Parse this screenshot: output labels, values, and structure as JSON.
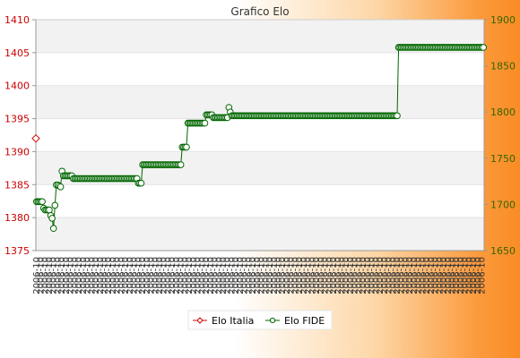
{
  "chart_data": {
    "type": "line",
    "title": "Grafico Elo",
    "left_axis": {
      "ticks": [
        1375,
        1380,
        1385,
        1390,
        1395,
        1400,
        1405,
        1410
      ],
      "ylim": [
        1375,
        1410
      ],
      "color": "#cc0000"
    },
    "right_axis": {
      "ticks": [
        1650,
        1700,
        1750,
        1800,
        1850,
        1900
      ],
      "ylim": [
        1650,
        1900
      ],
      "color": "#336600"
    },
    "grid": true,
    "legend_position": "bottom",
    "legend": [
      "Elo Italia",
      "Elo FIDE"
    ],
    "x_tick_label_sample": "2006-10",
    "series": [
      {
        "name": "Elo Italia",
        "axis": "left",
        "color": "#cc0000",
        "marker": "diamond",
        "values": [
          1392
        ]
      },
      {
        "name": "Elo FIDE",
        "axis": "right",
        "color": "#006600",
        "marker": "circle",
        "values": [
          1703,
          1703,
          1703,
          1703,
          1703,
          1696,
          1694,
          1694,
          1694,
          1694,
          1688,
          1685,
          1674,
          1699,
          1721,
          1721,
          1720,
          1719,
          1736,
          1731,
          1731,
          1731,
          1731,
          1731,
          1731,
          1731,
          1728,
          1728,
          1728,
          1728,
          1728,
          1728,
          1728,
          1728,
          1728,
          1728,
          1728,
          1728,
          1728,
          1728,
          1728,
          1728,
          1728,
          1728,
          1728,
          1728,
          1728,
          1728,
          1728,
          1728,
          1728,
          1728,
          1728,
          1728,
          1728,
          1728,
          1728,
          1728,
          1728,
          1728,
          1728,
          1728,
          1728,
          1728,
          1728,
          1728,
          1728,
          1728,
          1728,
          1728,
          1728,
          1728,
          1723,
          1723,
          1723,
          1743,
          1743,
          1743,
          1743,
          1743,
          1743,
          1743,
          1743,
          1743,
          1743,
          1743,
          1743,
          1743,
          1743,
          1743,
          1743,
          1743,
          1743,
          1743,
          1743,
          1743,
          1743,
          1743,
          1743,
          1743,
          1743,
          1743,
          1743,
          1762,
          1762,
          1762,
          1762,
          1788,
          1788,
          1788,
          1788,
          1788,
          1788,
          1788,
          1788,
          1788,
          1788,
          1788,
          1788,
          1788,
          1797,
          1797,
          1797,
          1797,
          1797,
          1794,
          1794,
          1794,
          1794,
          1794,
          1794,
          1794,
          1794,
          1794,
          1794,
          1794,
          1805,
          1800,
          1796,
          1796,
          1796,
          1796,
          1796,
          1796,
          1796,
          1796,
          1796,
          1796,
          1796,
          1796,
          1796,
          1796,
          1796,
          1796,
          1796,
          1796,
          1796,
          1796,
          1796,
          1796,
          1796,
          1796,
          1796,
          1796,
          1796,
          1796,
          1796,
          1796,
          1796,
          1796,
          1796,
          1796,
          1796,
          1796,
          1796,
          1796,
          1796,
          1796,
          1796,
          1796,
          1796,
          1796,
          1796,
          1796,
          1796,
          1796,
          1796,
          1796,
          1796,
          1796,
          1796,
          1796,
          1796,
          1796,
          1796,
          1796,
          1796,
          1796,
          1796,
          1796,
          1796,
          1796,
          1796,
          1796,
          1796,
          1796,
          1796,
          1796,
          1796,
          1796,
          1796,
          1796,
          1796,
          1796,
          1796,
          1796,
          1796,
          1796,
          1796,
          1796,
          1796,
          1796,
          1796,
          1796,
          1796,
          1796,
          1796,
          1796,
          1796,
          1796,
          1796,
          1796,
          1796,
          1796,
          1796,
          1796,
          1796,
          1796,
          1796,
          1796,
          1796,
          1796,
          1796,
          1796,
          1796,
          1796,
          1796,
          1796,
          1796,
          1796,
          1796,
          1796,
          1796,
          1796,
          1796,
          1796,
          1870,
          1870,
          1870,
          1870,
          1870,
          1870,
          1870,
          1870,
          1870,
          1870,
          1870,
          1870,
          1870,
          1870,
          1870,
          1870,
          1870,
          1870,
          1870,
          1870,
          1870,
          1870,
          1870,
          1870,
          1870,
          1870,
          1870,
          1870,
          1870,
          1870,
          1870,
          1870,
          1870,
          1870,
          1870,
          1870,
          1870,
          1870,
          1870,
          1870,
          1870,
          1870,
          1870,
          1870,
          1870,
          1870,
          1870,
          1870,
          1870,
          1870,
          1870,
          1870,
          1870,
          1870,
          1870,
          1870,
          1870,
          1870,
          1870,
          1870,
          1870
        ]
      }
    ]
  }
}
